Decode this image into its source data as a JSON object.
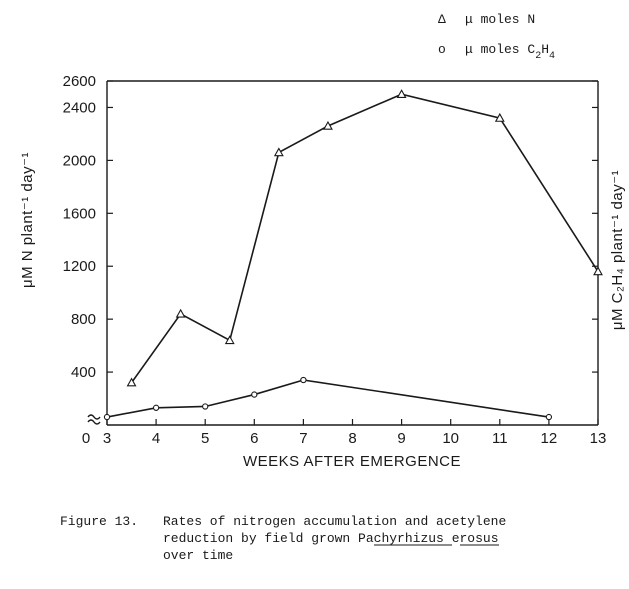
{
  "chart_data": {
    "type": "line",
    "title": "",
    "xlabel": "WEEKS AFTER EMERGENCE",
    "ylabel_left": "μM N plant⁻¹ day⁻¹",
    "ylabel_right": "μM C₂H₄ plant⁻¹ day⁻¹",
    "x_ticks": [
      "0",
      "3",
      "4",
      "5",
      "6",
      "7",
      "8",
      "9",
      "10",
      "11",
      "12",
      "13"
    ],
    "y_ticks": [
      "400",
      "800",
      "1200",
      "1600",
      "2000",
      "2400",
      "2600"
    ],
    "xlim": [
      3,
      13
    ],
    "ylim": [
      0,
      2600
    ],
    "axis_break": true,
    "grid": false,
    "legend_position": "top-right",
    "series": [
      {
        "name": "μ moles N",
        "marker": "triangle",
        "x": [
          3.5,
          4.5,
          5.5,
          6.5,
          7.5,
          9,
          11,
          13
        ],
        "y": [
          320,
          840,
          640,
          2060,
          2260,
          2500,
          2320,
          1160
        ]
      },
      {
        "name": "μ moles C₂H₄",
        "marker": "circle",
        "x": [
          3,
          4,
          5,
          6,
          7,
          12
        ],
        "y": [
          60,
          130,
          140,
          230,
          340,
          60
        ]
      }
    ]
  },
  "legend": [
    {
      "symbol": "Δ",
      "text": "μ moles N"
    },
    {
      "symbol": "o",
      "text": "μ moles C",
      "sub1": "2",
      "mid": "H",
      "sub2": "4"
    }
  ],
  "caption": {
    "label": "Figure 13.",
    "line1": "Rates of nitrogen accumulation and acetylene",
    "line2_pre": "reduction by field grown ",
    "line2_u1": "Pachyrhizus",
    "line2_sp": " ",
    "line2_u2": "erosus",
    "line3": "over time"
  }
}
